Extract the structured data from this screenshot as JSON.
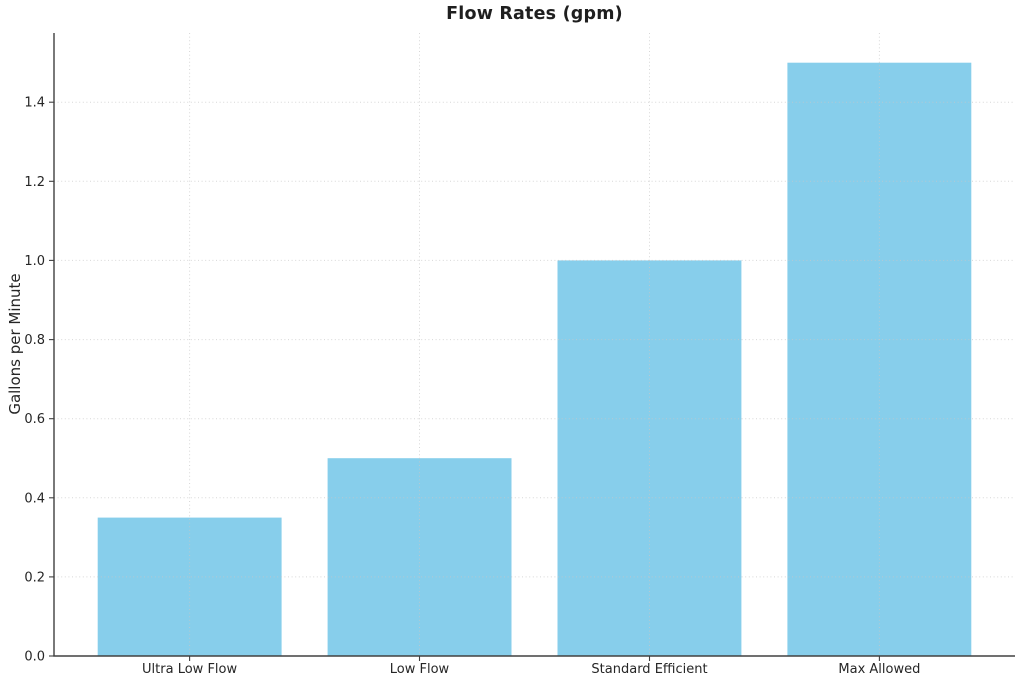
{
  "chart_data": {
    "type": "bar",
    "title": "Flow Rates (gpm)",
    "xlabel": "",
    "ylabel": "Gallons per Minute",
    "categories": [
      "Ultra Low Flow",
      "Low Flow",
      "Standard Efficient",
      "Max Allowed"
    ],
    "values": [
      0.35,
      0.5,
      1.0,
      1.5
    ],
    "ytick_labels": [
      "0.0",
      "0.2",
      "0.4",
      "0.6",
      "0.8",
      "1.0",
      "1.2",
      "1.4"
    ],
    "ytick_values": [
      0.0,
      0.2,
      0.4,
      0.6,
      0.8,
      1.0,
      1.2,
      1.4
    ],
    "ylim": [
      0,
      1.575
    ],
    "bar_width_fraction": 0.8,
    "bar_color": "#87CEEB",
    "grid": "dotted",
    "legend": "none",
    "background_color": "#ffffff"
  }
}
